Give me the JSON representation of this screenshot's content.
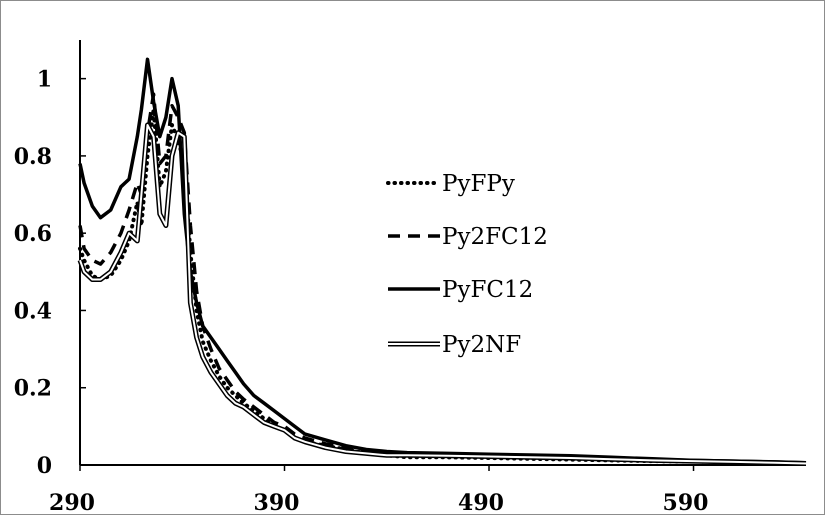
{
  "chart_data": {
    "type": "line",
    "title": "",
    "xlabel": "",
    "ylabel": "",
    "xlim": [
      290,
      645
    ],
    "ylim": [
      0,
      1.1
    ],
    "x_ticks": [
      290,
      390,
      490,
      590
    ],
    "x_tick_labels": [
      "290",
      "390",
      "490",
      "590"
    ],
    "y_ticks": [
      0,
      0.2,
      0.4,
      0.6,
      0.8,
      1
    ],
    "y_tick_labels": [
      "0",
      "0.2",
      "0.4",
      "0.6",
      "0.8",
      "1"
    ],
    "grid": false,
    "legend_position": "center-right",
    "series": [
      {
        "name": "PyFPy",
        "style": "dotted",
        "color": "#000000",
        "x": [
          290,
          292,
          296,
          300,
          305,
          310,
          314,
          318,
          320,
          323,
          326,
          329,
          332,
          335,
          338,
          341,
          344,
          347,
          350,
          354,
          358,
          362,
          366,
          370,
          375,
          380,
          385,
          390,
          395,
          400,
          410,
          420,
          430,
          440,
          450,
          470,
          490,
          510,
          530,
          550,
          570,
          590,
          610,
          630,
          645
        ],
        "y": [
          0.56,
          0.53,
          0.49,
          0.48,
          0.49,
          0.53,
          0.58,
          0.68,
          0.62,
          0.8,
          0.92,
          0.72,
          0.76,
          0.88,
          0.84,
          0.78,
          0.55,
          0.4,
          0.32,
          0.27,
          0.23,
          0.2,
          0.18,
          0.16,
          0.14,
          0.12,
          0.1,
          0.09,
          0.07,
          0.06,
          0.05,
          0.04,
          0.03,
          0.025,
          0.02,
          0.02,
          0.018,
          0.016,
          0.014,
          0.012,
          0.01,
          0.009,
          0.008,
          0.006,
          0.004
        ]
      },
      {
        "name": "Py2FC12",
        "style": "dashed",
        "color": "#000000",
        "x": [
          290,
          292,
          296,
          300,
          305,
          310,
          314,
          318,
          320,
          323,
          326,
          329,
          332,
          335,
          338,
          341,
          344,
          347,
          350,
          354,
          358,
          362,
          366,
          370,
          375,
          380,
          385,
          390,
          395,
          400,
          410,
          420,
          430,
          440,
          450,
          470,
          490,
          510,
          530,
          550,
          570,
          590,
          610,
          630,
          645
        ],
        "y": [
          0.62,
          0.56,
          0.53,
          0.52,
          0.55,
          0.6,
          0.66,
          0.73,
          0.7,
          0.86,
          0.96,
          0.78,
          0.8,
          0.93,
          0.9,
          0.86,
          0.62,
          0.45,
          0.36,
          0.3,
          0.25,
          0.22,
          0.19,
          0.17,
          0.15,
          0.13,
          0.11,
          0.1,
          0.08,
          0.07,
          0.055,
          0.045,
          0.035,
          0.03,
          0.025,
          0.025,
          0.022,
          0.02,
          0.018,
          0.015,
          0.012,
          0.01,
          0.009,
          0.007,
          0.005
        ]
      },
      {
        "name": "PyFC12",
        "style": "solid",
        "color": "#000000",
        "x": [
          290,
          292,
          296,
          300,
          305,
          310,
          314,
          318,
          320,
          323,
          326,
          329,
          332,
          335,
          338,
          341,
          344,
          347,
          350,
          354,
          358,
          362,
          366,
          370,
          375,
          380,
          385,
          390,
          395,
          400,
          410,
          420,
          430,
          440,
          450,
          470,
          490,
          510,
          530,
          550,
          570,
          590,
          610,
          630,
          645
        ],
        "y": [
          0.78,
          0.73,
          0.67,
          0.64,
          0.66,
          0.72,
          0.74,
          0.85,
          0.92,
          1.05,
          0.94,
          0.85,
          0.9,
          1.0,
          0.93,
          0.65,
          0.5,
          0.42,
          0.36,
          0.33,
          0.3,
          0.27,
          0.24,
          0.21,
          0.18,
          0.16,
          0.14,
          0.12,
          0.1,
          0.08,
          0.065,
          0.05,
          0.04,
          0.035,
          0.032,
          0.03,
          0.028,
          0.026,
          0.024,
          0.02,
          0.016,
          0.012,
          0.01,
          0.008,
          0.006
        ]
      },
      {
        "name": "Py2NF",
        "style": "double",
        "color": "#000000",
        "x": [
          290,
          292,
          296,
          300,
          305,
          310,
          314,
          318,
          320,
          323,
          326,
          329,
          332,
          335,
          338,
          341,
          344,
          347,
          350,
          354,
          358,
          362,
          366,
          370,
          375,
          380,
          385,
          390,
          395,
          400,
          410,
          420,
          430,
          440,
          450,
          470,
          490,
          510,
          530,
          550,
          570,
          590,
          610,
          630,
          645
        ],
        "y": [
          0.53,
          0.5,
          0.48,
          0.48,
          0.5,
          0.55,
          0.6,
          0.58,
          0.7,
          0.88,
          0.85,
          0.65,
          0.62,
          0.8,
          0.86,
          0.85,
          0.42,
          0.33,
          0.28,
          0.24,
          0.21,
          0.18,
          0.16,
          0.15,
          0.13,
          0.11,
          0.1,
          0.09,
          0.07,
          0.06,
          0.045,
          0.035,
          0.03,
          0.025,
          0.025,
          0.024,
          0.022,
          0.02,
          0.018,
          0.015,
          0.012,
          0.01,
          0.008,
          0.006,
          0.004
        ]
      }
    ]
  }
}
